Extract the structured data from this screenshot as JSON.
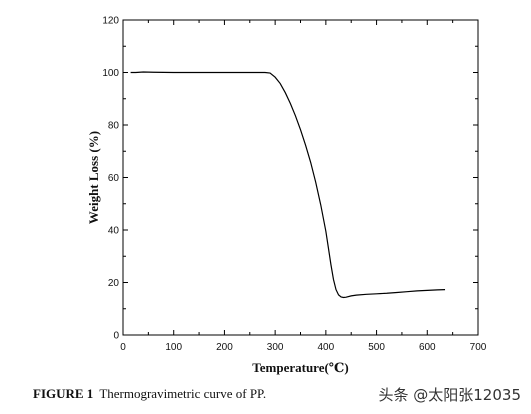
{
  "chart_data": {
    "type": "line",
    "title": "",
    "xlabel": "Temperature(℃)",
    "ylabel": "Weight Loss (%)",
    "xlim": [
      0,
      700
    ],
    "ylim": [
      0,
      120
    ],
    "x_ticks": [
      0,
      100,
      200,
      300,
      400,
      500,
      600,
      700
    ],
    "y_ticks": [
      0,
      20,
      40,
      60,
      80,
      100,
      120
    ],
    "grid": false,
    "legend": "none",
    "line_color": "#000000",
    "series": [
      {
        "x": [
          15,
          25,
          40,
          60,
          100,
          150,
          200,
          250,
          280,
          290,
          300,
          310,
          320,
          330,
          340,
          350,
          360,
          370,
          380,
          390,
          400,
          405,
          410,
          415,
          420,
          425,
          430,
          435,
          440,
          450,
          460,
          480,
          500,
          520,
          540,
          560,
          580,
          600,
          620,
          635
        ],
        "y": [
          100,
          100,
          100.2,
          100.1,
          100,
          100,
          100,
          100,
          100,
          99.8,
          98.2,
          95.8,
          92.3,
          88.2,
          83.5,
          78.2,
          72.3,
          65.8,
          58.2,
          49.5,
          39.5,
          33.2,
          26.8,
          21.2,
          17.3,
          15.3,
          14.5,
          14.3,
          14.4,
          14.9,
          15.2,
          15.5,
          15.7,
          15.9,
          16.2,
          16.5,
          16.8,
          17.0,
          17.2,
          17.3
        ]
      }
    ]
  },
  "caption": {
    "label": "FIGURE 1",
    "text": "Thermogravimetric curve of PP."
  },
  "watermark": "头条 @太阳张12035"
}
